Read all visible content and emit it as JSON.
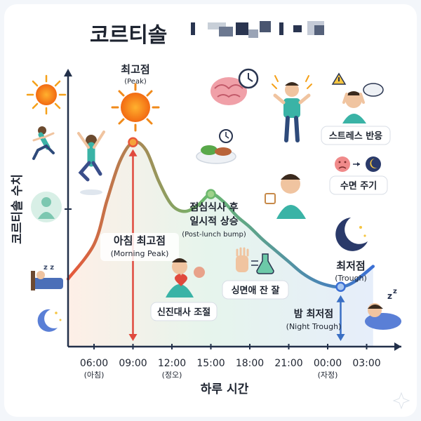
{
  "chart_data": {
    "type": "line",
    "title": "코르티솔",
    "xlabel": "하루 시간",
    "ylabel": "코르티솔 수치",
    "x_ticks": [
      {
        "label": "06:00",
        "sub": "(아침)"
      },
      {
        "label": "09:00",
        "sub": ""
      },
      {
        "label": "12:00",
        "sub": "(정오)"
      },
      {
        "label": "15:00",
        "sub": ""
      },
      {
        "label": "18:00",
        "sub": ""
      },
      {
        "label": "21:00",
        "sub": ""
      },
      {
        "label": "00:00",
        "sub": "(자정)"
      },
      {
        "label": "03:00",
        "sub": ""
      }
    ],
    "x_hours": [
      6,
      7,
      8,
      9,
      10,
      11,
      12,
      13,
      14,
      15,
      16,
      17,
      18,
      19,
      20,
      21,
      22,
      23,
      24,
      25,
      26,
      27.5
    ],
    "y_relative": [
      0.32,
      0.6,
      0.85,
      0.97,
      0.92,
      0.72,
      0.57,
      0.53,
      0.57,
      0.64,
      0.59,
      0.5,
      0.43,
      0.35,
      0.28,
      0.21,
      0.14,
      0.09,
      0.06,
      0.05,
      0.08,
      0.18
    ],
    "ylim": [
      0,
      1
    ],
    "grid": false,
    "points": [
      {
        "name": "peak",
        "x": 9,
        "y": 0.97
      },
      {
        "name": "bump",
        "x": 15,
        "y": 0.64
      },
      {
        "name": "trough",
        "x": 25,
        "y": 0.05
      }
    ],
    "annotations": {
      "peak": {
        "title": "최고점",
        "sub": "(Peak)"
      },
      "morning_peak": {
        "title": "아침 최고점",
        "sub": "(Morning Peak)"
      },
      "bump": {
        "title1": "점심식사 후",
        "title2": "일시적 상승",
        "sub": "(Post-lunch bump)"
      },
      "trough": {
        "title": "최저점",
        "sub": "(Trough)"
      },
      "night_trough": {
        "title": "밤 최저점",
        "sub": "(Night Trough)"
      },
      "metabolism": "신진대사 조절",
      "heart": "싱면애 잔 잘",
      "stress": "스트레스 반응",
      "sleep_cycle": "수면 주기"
    },
    "colors": {
      "curve_start": "#e8573a",
      "curve_mid": "#6cb86e",
      "curve_end": "#3b6fd4",
      "arrow": "#e0493d",
      "night_arrow": "#3a6fc4",
      "fill": "#dff0ee",
      "axis": "#22304a"
    }
  }
}
